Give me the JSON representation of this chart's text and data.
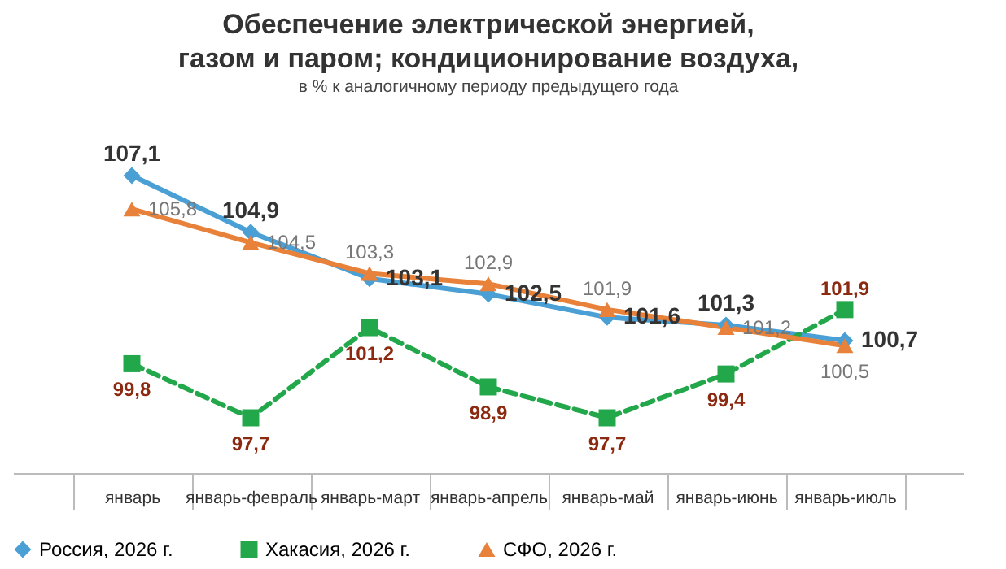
{
  "chart_data": {
    "type": "line",
    "title": "Обеспечение электрической энергией, газом и паром; кондиционирование воздуха,",
    "subtitle": "в % к аналогичному периоду предыдущего года",
    "categories": [
      "январь",
      "январь-февраль",
      "январь-март",
      "январь-апрель",
      "январь-май",
      "январь-июнь",
      "январь-июль"
    ],
    "series": [
      {
        "name": "Россия, 2026 г.",
        "color": "#4a9fd4",
        "marker": "diamond",
        "line_style": "solid",
        "values": [
          107.1,
          104.9,
          103.1,
          102.5,
          101.6,
          101.3,
          100.7
        ],
        "value_labels": [
          "107,1",
          "104,9",
          "103,1",
          "102,5",
          "101,6",
          "101,3",
          "100,7"
        ]
      },
      {
        "name": "Хакасия, 2026 г.",
        "color": "#22a84a",
        "marker": "square",
        "line_style": "dashed",
        "values": [
          99.8,
          97.7,
          101.2,
          98.9,
          97.7,
          99.4,
          101.9
        ],
        "value_labels": [
          "99,8",
          "97,7",
          "101,2",
          "98,9",
          "97,7",
          "99,4",
          "101,9"
        ]
      },
      {
        "name": "СФО, 2026 г.",
        "color": "#e8823a",
        "marker": "triangle",
        "line_style": "solid",
        "values": [
          105.8,
          104.5,
          103.3,
          102.9,
          101.9,
          101.2,
          100.5
        ],
        "value_labels": [
          "105,8",
          "104,5",
          "103,3",
          "102,9",
          "101,9",
          "101,2",
          "100,5"
        ]
      }
    ],
    "grid": false,
    "legend": "bottom"
  }
}
